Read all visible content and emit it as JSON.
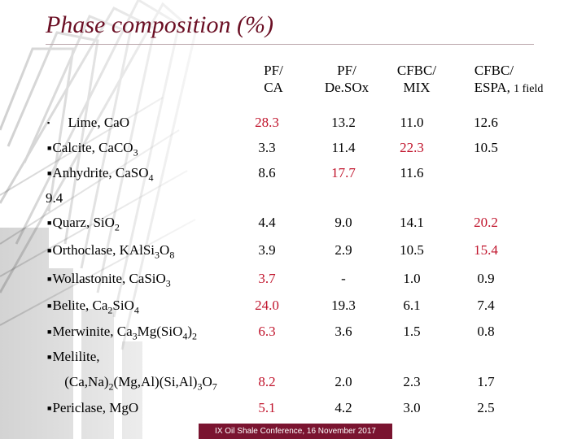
{
  "title": "Phase composition (%)",
  "headers": [
    {
      "line1": "PF/",
      "line2": "CA",
      "line2_small": ""
    },
    {
      "line1": "PF/",
      "line2": "De.SOx",
      "line2_small": ""
    },
    {
      "line1": "CFBC/",
      "line2": "MIX",
      "line2_small": ""
    },
    {
      "line1": "CFBC/",
      "line2": "ESPA,",
      "line2_small": "1 field"
    }
  ],
  "rows": [
    {
      "bullet": "▪",
      "label_html": "&nbsp;&nbsp;&nbsp;&nbsp;&nbsp;Lime, CaO",
      "values": [
        "28.3",
        "13.2",
        "11.0",
        "12.6"
      ],
      "red": [
        true,
        false,
        false,
        false
      ]
    },
    {
      "bullet": "■",
      "label_html": "Calcite, CaCO<sub>3</sub>",
      "values": [
        "3.3",
        "11.4",
        "22.3",
        "10.5"
      ],
      "red": [
        false,
        false,
        true,
        false
      ]
    },
    {
      "bullet": "■",
      "label_html": "Anhydrite, CaSO<sub>4</sub>",
      "values": [
        "8.6",
        "17.7",
        "11.6",
        ""
      ],
      "red": [
        false,
        true,
        false,
        false
      ]
    },
    {
      "bullet": "■",
      "label_html": "Quarz, SiO<sub>2</sub>",
      "values": [
        "4.4",
        "9.0",
        "14.1",
        "20.2"
      ],
      "red": [
        false,
        false,
        false,
        true
      ]
    },
    {
      "bullet": "■",
      "label_html": "Orthoclase, KAlSi<sub>3</sub>O<sub>8</sub>",
      "values": [
        "3.9",
        "2.9",
        "10.5",
        "15.4"
      ],
      "red": [
        false,
        false,
        false,
        true
      ]
    },
    {
      "bullet": "■",
      "label_html": "Wollastonite, CaSiO<sub>3</sub>",
      "values": [
        "3.7",
        "-",
        "1.0",
        "0.9"
      ],
      "red": [
        true,
        false,
        false,
        false
      ]
    },
    {
      "bullet": "■",
      "label_html": "Belite, Ca<sub>2</sub>SiO<sub>4</sub>",
      "values": [
        "24.0",
        "19.3",
        "6.1",
        "7.4"
      ],
      "red": [
        true,
        false,
        false,
        false
      ]
    },
    {
      "bullet": "■",
      "label_html": "Merwinite, Ca<sub>3</sub>Mg(SiO<sub>4</sub>)<sub>2</sub>",
      "values": [
        "6.3",
        "3.6",
        "1.5",
        "0.8"
      ],
      "red": [
        true,
        false,
        false,
        false
      ]
    },
    {
      "bullet": "■",
      "label_html": "Melilite,",
      "values": [
        "",
        "",
        "",
        ""
      ],
      "red": [
        false,
        false,
        false,
        false
      ]
    },
    {
      "bullet": "",
      "label_html": "&nbsp;&nbsp;&nbsp;&nbsp;&nbsp;(Ca,Na)<sub>2</sub>(Mg,Al)(Si,Al)<sub>3</sub>O<sub>7</sub>",
      "values": [
        "8.2",
        "2.0",
        "2.3",
        "1.7"
      ],
      "red": [
        true,
        false,
        false,
        false
      ]
    },
    {
      "bullet": "■",
      "label_html": "Periclase, MgO",
      "values": [
        "5.1",
        "4.2",
        "3.0",
        "2.5"
      ],
      "red": [
        true,
        false,
        false,
        false
      ]
    }
  ],
  "stray_value": "9.4",
  "footer": "IX Oil Shale Conference, 16 November 2017",
  "colors": {
    "title": "#6b0f24",
    "highlight": "#c0132b",
    "footer_bg": "#7a1430"
  }
}
